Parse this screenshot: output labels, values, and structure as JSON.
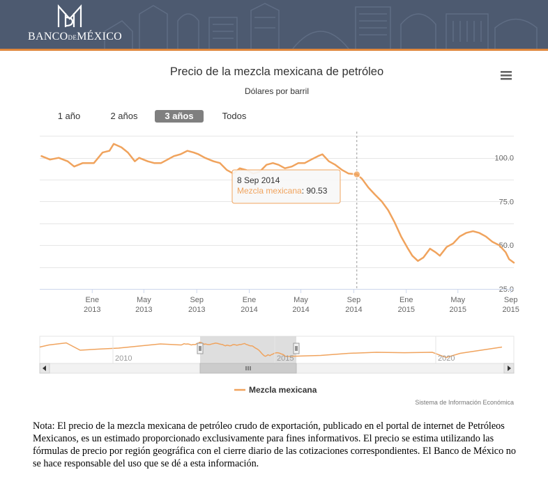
{
  "header": {
    "bank_name_part1": "BANCO",
    "bank_name_part2": "DE",
    "bank_name_part3": "MÉXICO",
    "colors": {
      "background": "#4d5a70",
      "accent": "#e0873c"
    }
  },
  "menu": {
    "icon": "hamburger-menu-icon"
  },
  "range_selector": {
    "buttons": [
      "1 año",
      "2 años",
      "3 años",
      "Todos"
    ],
    "selected": "3 años"
  },
  "tooltip": {
    "date": "8 Sep 2014",
    "series_label": "Mezcla mexicana",
    "value": "90.53",
    "x": "2014-09-08",
    "y": 90.53
  },
  "navigator": {
    "labels": [
      "2010",
      "2015",
      "2020"
    ]
  },
  "credits": "Sistema de Información Económica",
  "nota": "Nota: El precio de la mezcla mexicana de petróleo crudo de exportación, publicado en el portal de internet de Petróleos Mexicanos, es un estimado proporcionado exclusivamente para fines informativos. El precio se estima utilizando las fórmulas de precio por región geográfica con el cierre diario de las cotizaciones correspondientes. El Banco de México no se hace responsable del uso que se dé a esta información.",
  "chart_data": {
    "type": "line",
    "title": "Precio de la mezcla mexicana de petróleo",
    "subtitle": "Dólares por barril",
    "series": [
      {
        "name": "Mezcla mexicana",
        "color": "#f0a35d",
        "x": [
          "2012-09-05",
          "2012-09-25",
          "2012-10-15",
          "2012-11-05",
          "2012-11-20",
          "2012-12-10",
          "2013-01-05",
          "2013-01-25",
          "2013-02-10",
          "2013-02-20",
          "2013-03-10",
          "2013-03-25",
          "2013-04-10",
          "2013-04-20",
          "2013-05-10",
          "2013-05-25",
          "2013-06-10",
          "2013-06-25",
          "2013-07-10",
          "2013-07-25",
          "2013-08-10",
          "2013-08-25",
          "2013-09-05",
          "2013-09-20",
          "2013-10-10",
          "2013-10-25",
          "2013-11-10",
          "2013-11-25",
          "2013-12-10",
          "2013-12-25",
          "2014-01-10",
          "2014-01-25",
          "2014-02-10",
          "2014-02-25",
          "2014-03-10",
          "2014-03-25",
          "2014-04-10",
          "2014-04-25",
          "2014-05-10",
          "2014-05-25",
          "2014-06-10",
          "2014-06-20",
          "2014-07-05",
          "2014-07-20",
          "2014-08-05",
          "2014-08-20",
          "2014-09-08",
          "2014-09-20",
          "2014-10-05",
          "2014-10-20",
          "2014-11-05",
          "2014-11-20",
          "2014-12-05",
          "2014-12-20",
          "2015-01-05",
          "2015-01-15",
          "2015-01-28",
          "2015-02-10",
          "2015-02-25",
          "2015-03-10",
          "2015-03-20",
          "2015-04-05",
          "2015-04-20",
          "2015-05-05",
          "2015-05-20",
          "2015-06-05",
          "2015-06-20",
          "2015-07-05",
          "2015-07-20",
          "2015-08-05",
          "2015-08-20",
          "2015-08-28",
          "2015-09-08"
        ],
        "y": [
          101,
          99,
          100,
          98,
          95,
          97,
          97,
          103,
          104,
          108,
          106,
          103,
          98,
          100,
          98,
          97,
          97,
          99,
          101,
          102,
          104,
          103,
          102,
          100,
          98,
          97,
          93,
          91,
          94,
          93,
          91,
          92,
          96,
          97,
          96,
          94,
          95,
          97,
          97,
          99,
          101,
          102,
          98,
          96,
          93,
          91,
          90.53,
          88,
          83,
          79,
          75,
          70,
          63,
          55,
          48,
          44,
          41,
          43,
          48,
          46,
          44,
          49,
          51,
          55,
          57,
          58,
          57,
          55,
          52,
          50,
          46,
          42,
          40
        ]
      }
    ],
    "xlabel": "",
    "ylabel": "",
    "x_ticks": [
      "Ene 2013",
      "May 2013",
      "Sep 2013",
      "Ene 2014",
      "May 2014",
      "Sep 2014",
      "Ene 2015",
      "May 2015",
      "Sep 2015"
    ],
    "y_ticks": [
      "25.0",
      "50.0",
      "75.0",
      "100.0"
    ],
    "ylim": [
      25,
      115
    ],
    "xlim": [
      "2012-09-01",
      "2015-09-08"
    ],
    "grid": true,
    "legend": "bottom-center"
  }
}
